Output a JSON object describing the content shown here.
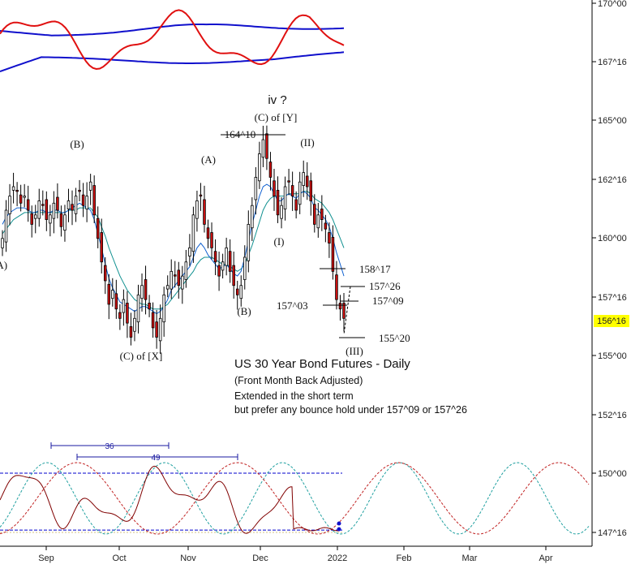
{
  "chart_data": {
    "type": "candlestick",
    "title": "US 30 Year Bond Futures - Daily",
    "subtitle": "(Front Month Back Adjusted)",
    "notes": [
      "Extended in the short term",
      "but prefer any bounce hold under 157^09 or 157^26"
    ],
    "price_axis": {
      "ticks": [
        "170^00",
        "167^16",
        "165^00",
        "162^16",
        "160^00",
        "157^16",
        "155^00",
        "152^16",
        "150^00",
        "147^16"
      ],
      "min": 147.5,
      "max": 170.0,
      "current": "156^16"
    },
    "time_axis": {
      "ticks": [
        "Sep",
        "Oct",
        "Nov",
        "Dec",
        "2022",
        "Feb",
        "Mar",
        "Apr"
      ]
    },
    "wave_labels": [
      "iv ?",
      "(C) of [Y]",
      "164^10",
      "(II)",
      "(B)",
      "(A)",
      "(A)",
      "(I)",
      "(B)",
      "(C) of [X]",
      "(III)"
    ],
    "price_levels": [
      "158^17",
      "157^26",
      "157^09",
      "157^03",
      "155^20"
    ],
    "cycle_spans": [
      "36",
      "49"
    ],
    "candles_close": [
      160.0,
      161.2,
      161.8,
      162.2,
      162.0,
      161.5,
      161.8,
      161.2,
      160.6,
      161.0,
      161.6,
      161.4,
      160.8,
      161.0,
      161.5,
      161.2,
      160.5,
      161.0,
      161.6,
      161.2,
      161.8,
      162.0,
      161.4,
      161.8,
      162.4,
      161.0,
      160.0,
      159.0,
      158.2,
      157.2,
      157.8,
      157.0,
      156.6,
      157.4,
      156.4,
      155.8,
      156.6,
      157.6,
      158.0,
      157.4,
      157.0,
      156.2,
      155.8,
      156.6,
      157.6,
      158.0,
      158.6,
      158.4,
      158.0,
      158.4,
      159.0,
      159.6,
      161.0,
      161.6,
      161.8,
      160.6,
      160.0,
      159.6,
      159.0,
      158.4,
      159.0,
      159.6,
      158.6,
      158.0,
      157.6,
      158.0,
      159.2,
      160.6,
      161.4,
      162.6,
      163.6,
      164.2,
      163.4,
      162.6,
      161.8,
      161.0,
      161.4,
      162.2,
      162.4,
      161.8,
      161.2,
      162.4,
      162.8,
      162.2,
      161.6,
      160.6,
      161.0,
      160.8,
      160.4,
      159.8,
      158.6,
      157.4,
      157.0,
      156.6
    ],
    "ma_fast": [
      160.6,
      160.9,
      161.1,
      161.2,
      161.3,
      161.3,
      161.3,
      161.2,
      161.1,
      161.1,
      161.2,
      161.2,
      161.1,
      161.1,
      161.2,
      161.2,
      161.1,
      161.1,
      161.2,
      161.3,
      161.4,
      161.5,
      161.4,
      161.3,
      161.2,
      160.8,
      160.2,
      159.6,
      158.9,
      158.3,
      157.9,
      157.6,
      157.3,
      157.2,
      157.1,
      157.0,
      156.9,
      157.0,
      157.1,
      157.1,
      157.0,
      156.9,
      156.8,
      156.9,
      157.1,
      157.4,
      157.8,
      158.0,
      158.2,
      158.4,
      158.6,
      158.8,
      159.2,
      159.6,
      159.8,
      159.6,
      159.3,
      159.1,
      158.9,
      158.7,
      158.8,
      158.9,
      158.7,
      158.5,
      158.4,
      158.6,
      159.2,
      159.9,
      160.6,
      161.2,
      161.8,
      162.2,
      162.3,
      162.2,
      161.9,
      161.6,
      161.6,
      161.8,
      161.9,
      161.8,
      161.7,
      161.9,
      162.0,
      161.9,
      161.7,
      161.3,
      161.2,
      161.0,
      160.8,
      160.5,
      160.0,
      159.4,
      158.9,
      158.4
    ],
    "ma_slow": [
      160.2,
      160.4,
      160.6,
      160.8,
      160.9,
      161.0,
      161.1,
      161.1,
      161.1,
      161.1,
      161.1,
      161.1,
      161.1,
      161.1,
      161.1,
      161.1,
      161.1,
      161.1,
      161.2,
      161.2,
      161.2,
      161.3,
      161.3,
      161.3,
      161.3,
      161.1,
      160.9,
      160.5,
      160.1,
      159.6,
      159.2,
      158.8,
      158.4,
      158.1,
      157.8,
      157.6,
      157.4,
      157.3,
      157.2,
      157.2,
      157.1,
      157.0,
      157.0,
      157.0,
      157.1,
      157.2,
      157.4,
      157.6,
      157.8,
      158.0,
      158.2,
      158.4,
      158.6,
      158.9,
      159.1,
      159.2,
      159.2,
      159.2,
      159.1,
      159.0,
      158.9,
      158.9,
      158.8,
      158.7,
      158.6,
      158.7,
      158.9,
      159.3,
      159.7,
      160.2,
      160.7,
      161.2,
      161.5,
      161.7,
      161.8,
      161.8,
      161.8,
      161.8,
      161.9,
      161.9,
      161.9,
      161.9,
      162.0,
      162.0,
      161.9,
      161.7,
      161.6,
      161.5,
      161.3,
      161.1,
      160.8,
      160.4,
      160.0,
      159.6
    ],
    "cycles": {
      "threshold_high": 150.0,
      "threshold_low": 147.6
    },
    "colors": {
      "bull_candle": "#ffffff",
      "bear_candle": "#d01010",
      "oscillator": "#e01010",
      "bands": "#1010cc",
      "ma_fast": "#1060d0",
      "ma_slow": "#109090",
      "cycle1": "#20a0a0",
      "cycle2": "#c02020",
      "cycle_line": "#800000",
      "highlight": "#ffff00"
    }
  }
}
